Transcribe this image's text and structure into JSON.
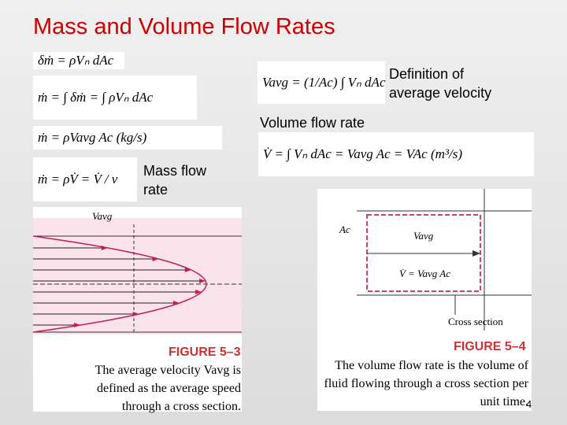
{
  "title": "Mass and Volume Flow Rates",
  "equations": [
    "δṁ = ρVₙ dAc",
    "ṁ = ∫ δṁ = ∫ ρVₙ dAc",
    "ṁ = ρVavg Ac   (kg/s)",
    "ṁ = ρV̇ = V̇ / v",
    "Vavg = (1/Ac) ∫ Vₙ dAc",
    "V̇ = ∫ Vₙ dAc = Vavg Ac = VAc   (m³/s)"
  ],
  "labels": {
    "average_velocity": "Definition of average velocity",
    "volume_flow": "Volume flow rate",
    "mass_flow": "Mass flow rate"
  },
  "figure_5_3": {
    "symbol": "Vavg",
    "caption_title": "FIGURE 5–3",
    "caption": "The average velocity Vavg is defined as the average speed through a cross section."
  },
  "figure_5_4": {
    "area": "Ac",
    "symbol": "Vavg",
    "flow": "V̇ = Vavg Ac",
    "section": "Cross section",
    "caption_title": "FIGURE 5–4",
    "caption": "The volume flow rate is the volume of fluid flowing through a cross section per unit time."
  },
  "page_number": "4"
}
